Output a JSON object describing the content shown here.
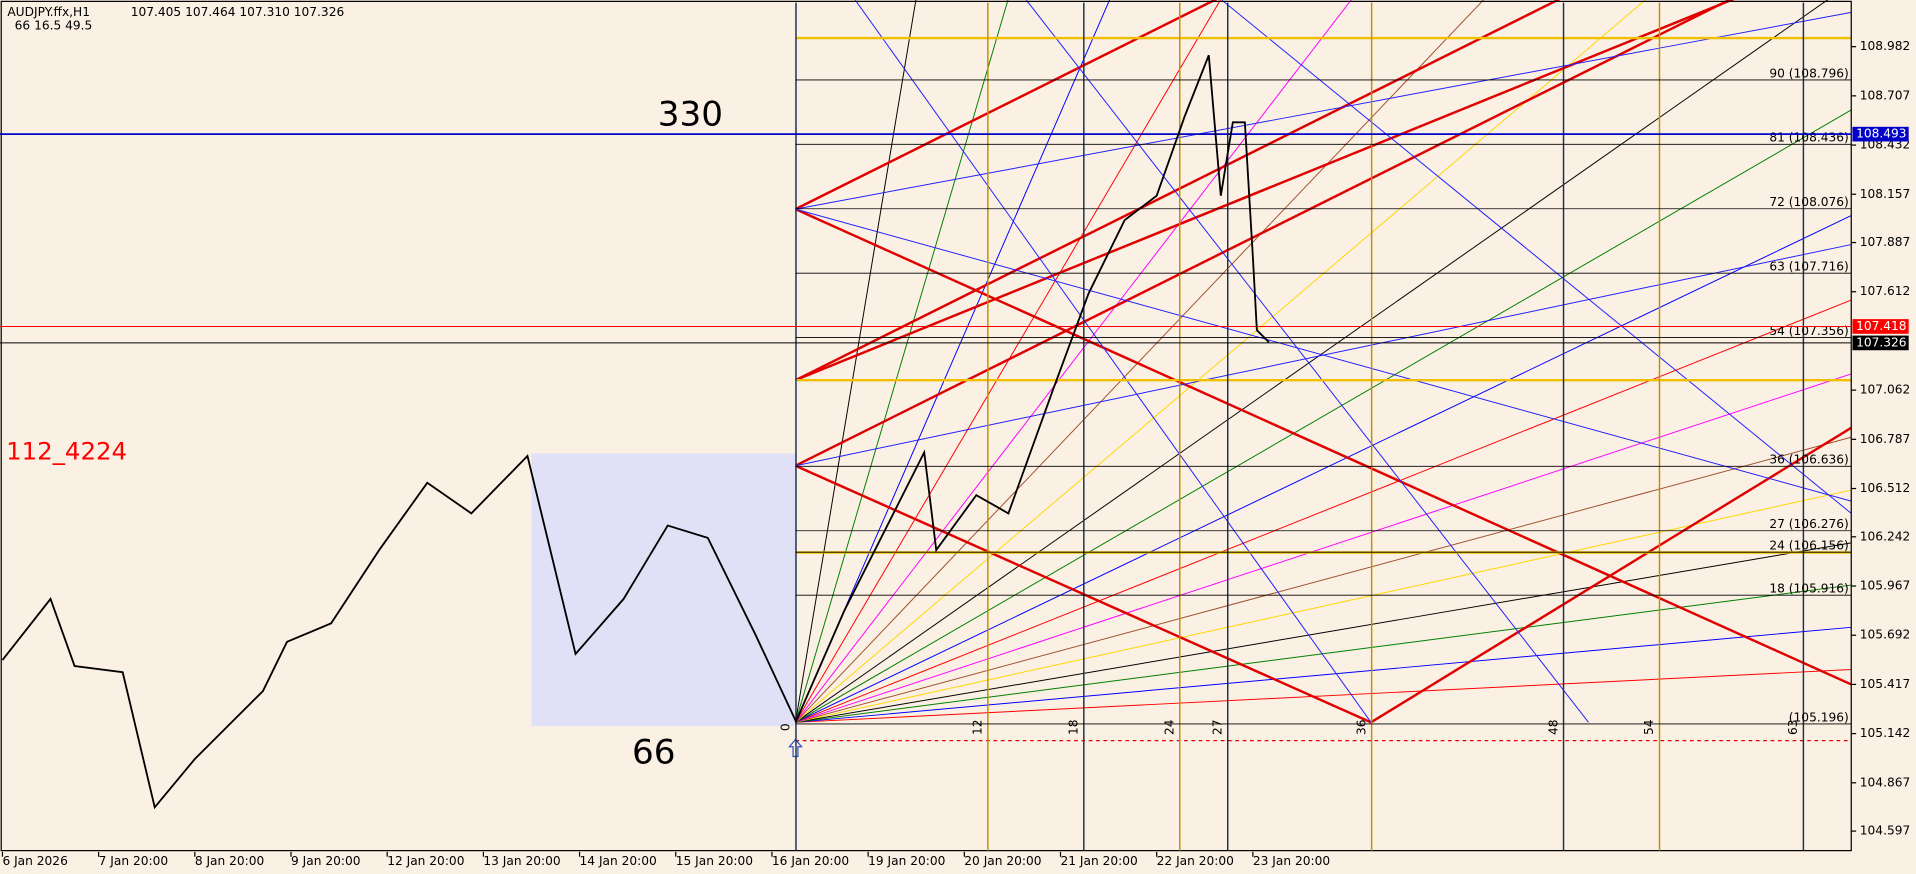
{
  "header": {
    "symbol": "AUDJPY.ffx,H1",
    "ohlc": "107.405 107.464 107.310 107.326",
    "indicator": "66  16.5  49.5"
  },
  "chart_data": {
    "type": "line",
    "annotations": [
      "330",
      "66",
      "112_4224"
    ],
    "series": [
      {
        "name": "AUDJPY",
        "color": "#000000",
        "x": [
          0,
          12,
          18,
          30,
          38,
          48,
          65,
          71,
          82,
          94,
          106,
          117,
          131,
          143,
          155,
          166,
          176,
          188,
          198,
          210,
          230,
          233,
          243,
          251,
          262,
          271,
          280,
          288,
          295,
          301,
          304,
          307,
          310,
          312,
          313,
          316
        ],
        "values": [
          105.553,
          105.895,
          105.52,
          105.485,
          104.73,
          105.0,
          105.38,
          105.655,
          105.758,
          106.168,
          106.544,
          106.373,
          106.694,
          105.587,
          105.895,
          106.305,
          106.236,
          105.69,
          105.21,
          105.826,
          106.714,
          106.168,
          106.475,
          106.373,
          107.056,
          107.602,
          108.012,
          108.149,
          108.593,
          108.934,
          108.149,
          108.559,
          108.559,
          107.807,
          107.397,
          107.33
        ]
      }
    ],
    "xlim": [
      0,
      461
    ],
    "xticks": [
      {
        "value": 0,
        "label": "6 Jan 2026"
      },
      {
        "value": 24,
        "label": "7 Jan 20:00"
      },
      {
        "value": 48,
        "label": "8 Jan 20:00"
      },
      {
        "value": 72,
        "label": "9 Jan 20:00"
      },
      {
        "value": 96,
        "label": "12 Jan 20:00"
      },
      {
        "value": 120,
        "label": "13 Jan 20:00"
      },
      {
        "value": 144,
        "label": "14 Jan 20:00"
      },
      {
        "value": 168,
        "label": "15 Jan 20:00"
      },
      {
        "value": 192,
        "label": "16 Jan 20:00"
      },
      {
        "value": 216,
        "label": "19 Jan 20:00"
      },
      {
        "value": 240,
        "label": "20 Jan 20:00"
      },
      {
        "value": 264,
        "label": "21 Jan 20:00"
      },
      {
        "value": 288,
        "label": "22 Jan 20:00"
      },
      {
        "value": 312,
        "label": "23 Jan 20:00"
      }
    ],
    "ylim": [
      104.481,
      109.242
    ],
    "yticks": [
      108.982,
      108.707,
      108.432,
      108.157,
      107.887,
      107.612,
      107.062,
      106.787,
      106.512,
      106.242,
      105.967,
      105.692,
      105.417,
      105.142,
      104.867,
      104.597
    ],
    "hlines": [
      {
        "value": 108.493,
        "color": "#0000c8"
      },
      {
        "value": 107.418,
        "color": "#ff0000"
      },
      {
        "value": 107.326,
        "color": "#000000"
      }
    ],
    "gann_levels": [
      {
        "label": "90 (108.796)",
        "value": 108.796
      },
      {
        "label": "81 (108.436)",
        "value": 108.436
      },
      {
        "label": "72 (108.076)",
        "value": 108.076
      },
      {
        "label": "63 (107.716)",
        "value": 107.716
      },
      {
        "label": "54 (107.356)",
        "value": 107.356
      },
      {
        "label": "36 (106.636)",
        "value": 106.636
      },
      {
        "label": "27 (106.276)",
        "value": 106.276
      },
      {
        "label": "24 (106.156)",
        "value": 106.156
      },
      {
        "label": "18 (105.916)",
        "value": 105.916
      },
      {
        "label": "(105.196)",
        "value": 105.196
      }
    ],
    "time_marks": [
      0,
      12,
      18,
      24,
      27,
      36,
      48,
      54,
      63
    ]
  }
}
